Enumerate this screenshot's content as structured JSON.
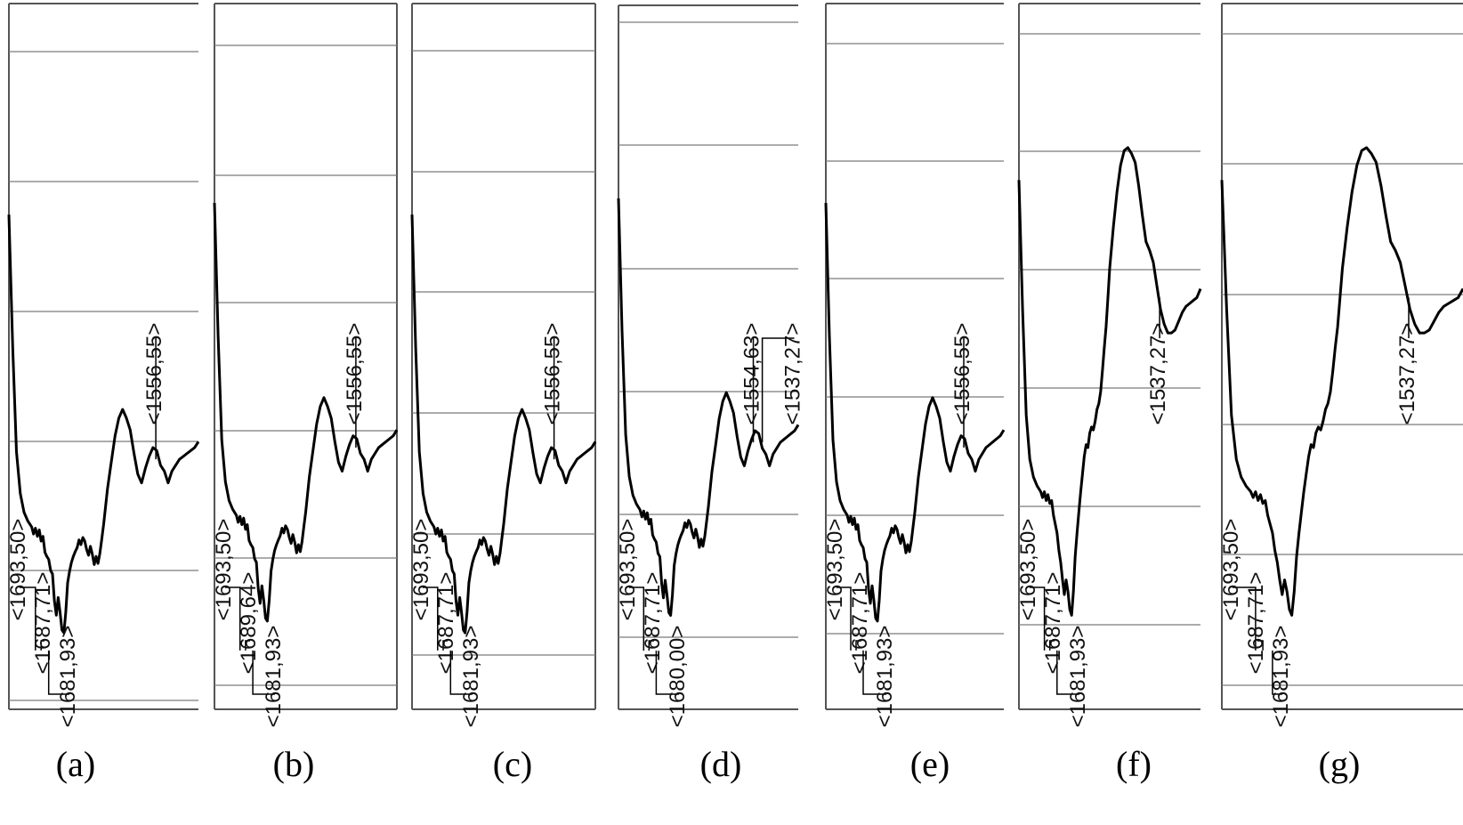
{
  "chart_data": [
    {
      "panel": "(a)",
      "type": "line",
      "series": [
        {
          "x": [
            0,
            4,
            8,
            12,
            16,
            20,
            24,
            26,
            28,
            30,
            32,
            34,
            36,
            38,
            40,
            42,
            44,
            46,
            48,
            50,
            52,
            54,
            56,
            58,
            60,
            62,
            64,
            66,
            68,
            70,
            72,
            74,
            76,
            78,
            80,
            82,
            84,
            86,
            88,
            90,
            92,
            94,
            96,
            98,
            100,
            104,
            108,
            112,
            116,
            120,
            124,
            128,
            132,
            136,
            140,
            144,
            148,
            152,
            156,
            160,
            164,
            168,
            172,
            176,
            180,
            184,
            188,
            192,
            196,
            200
          ],
          "y": [
            35.9,
            58.5,
            76.2,
            83.3,
            86.5,
            88.0,
            89.0,
            90.2,
            89.2,
            90.6,
            89.5,
            91.4,
            90.6,
            93.3,
            94.0,
            94.5,
            96.4,
            97.0,
            101.5,
            104.0,
            101.0,
            103.5,
            106.5,
            107.0,
            103.5,
            98.5,
            96.5,
            95.0,
            94.0,
            93.2,
            92.5,
            91.2,
            92.0,
            90.8,
            91.4,
            92.8,
            93.8,
            92.3,
            93.6,
            95.4,
            94.0,
            95.2,
            93.5,
            91.0,
            88.5,
            82.5,
            78.0,
            73.5,
            70.5,
            69.0,
            70.5,
            72.5,
            76.5,
            80.0,
            81.5,
            79.0,
            77.0,
            75.5,
            76.0,
            78.5,
            79.5,
            81.5,
            79.5,
            78.5,
            77.5,
            77.0,
            76.5,
            76.0,
            75.5,
            74.5
          ]
        }
      ],
      "peak_labels": [
        "<1693,50>",
        "<1687,71>",
        "<1681,93>",
        "<1556,55>"
      ]
    },
    {
      "panel": "(b)",
      "type": "line",
      "series": [
        {
          "x": [
            0,
            4,
            8,
            12,
            16,
            20,
            24,
            26,
            28,
            30,
            32,
            34,
            36,
            38,
            40,
            42,
            44,
            46,
            48,
            50,
            52,
            54,
            56,
            58,
            60,
            62,
            64,
            66,
            68,
            70,
            72,
            74,
            76,
            78,
            80,
            82,
            84,
            86,
            88,
            90,
            92,
            94,
            96,
            98,
            100,
            104,
            108,
            112,
            116,
            120,
            124,
            128,
            132,
            136,
            140,
            144,
            148,
            152,
            156,
            160,
            164,
            168,
            172,
            176,
            180,
            184,
            188,
            192,
            196,
            200
          ],
          "y": [
            33.9,
            56.5,
            74.2,
            81.3,
            84.5,
            86.0,
            87.0,
            88.2,
            87.2,
            88.6,
            87.5,
            89.4,
            88.6,
            91.3,
            92.0,
            92.5,
            94.4,
            95.0,
            99.5,
            102.0,
            99.0,
            101.5,
            104.5,
            105.0,
            101.5,
            96.5,
            94.5,
            93.0,
            92.0,
            91.2,
            90.5,
            89.2,
            90.0,
            88.8,
            89.4,
            90.8,
            91.8,
            90.3,
            91.6,
            93.4,
            92.0,
            93.2,
            91.5,
            89.0,
            86.5,
            80.5,
            76.0,
            71.5,
            68.5,
            67.0,
            68.5,
            70.5,
            74.5,
            78.0,
            79.5,
            77.0,
            75.0,
            73.5,
            74.0,
            76.5,
            77.5,
            79.5,
            77.5,
            76.5,
            75.5,
            75.0,
            74.5,
            74.0,
            73.5,
            72.5
          ]
        }
      ],
      "peak_labels": [
        "<1693,50>",
        "<1689,64>",
        "<1681,93>",
        "<1556,55>"
      ]
    },
    {
      "panel": "(c)",
      "type": "line",
      "series": [
        {
          "x": [
            0,
            4,
            8,
            12,
            16,
            20,
            24,
            26,
            28,
            30,
            32,
            34,
            36,
            38,
            40,
            42,
            44,
            46,
            48,
            50,
            52,
            54,
            56,
            58,
            60,
            62,
            64,
            66,
            68,
            70,
            72,
            74,
            76,
            78,
            80,
            82,
            84,
            86,
            88,
            90,
            92,
            94,
            96,
            98,
            100,
            104,
            108,
            112,
            116,
            120,
            124,
            128,
            132,
            136,
            140,
            144,
            148,
            152,
            156,
            160,
            164,
            168,
            172,
            176,
            180,
            184,
            188,
            192,
            196,
            200
          ],
          "y": [
            35.9,
            58.5,
            76.2,
            83.3,
            86.5,
            88.0,
            89.0,
            90.2,
            89.2,
            90.6,
            89.5,
            91.4,
            90.6,
            93.3,
            94.0,
            94.5,
            96.4,
            97.0,
            101.5,
            104.0,
            101.0,
            103.5,
            106.5,
            107.0,
            103.5,
            98.5,
            96.5,
            95.0,
            94.0,
            93.2,
            92.5,
            91.2,
            92.0,
            90.8,
            91.4,
            92.8,
            93.8,
            92.3,
            93.6,
            95.4,
            94.0,
            95.2,
            93.5,
            91.0,
            88.5,
            82.5,
            78.0,
            73.5,
            70.5,
            69.0,
            70.5,
            72.5,
            76.5,
            80.0,
            81.5,
            79.0,
            77.0,
            75.5,
            76.0,
            78.5,
            79.5,
            81.5,
            79.5,
            78.5,
            77.5,
            77.0,
            76.5,
            76.0,
            75.5,
            74.5
          ]
        }
      ],
      "peak_labels": [
        "<1693,50>",
        "<1687,71>",
        "<1681,93>",
        "<1556,55>"
      ]
    },
    {
      "panel": "(d)",
      "type": "line",
      "series": [
        {
          "x": [
            0,
            4,
            8,
            12,
            16,
            20,
            24,
            26,
            28,
            30,
            32,
            34,
            36,
            38,
            40,
            42,
            44,
            46,
            48,
            50,
            52,
            54,
            56,
            58,
            60,
            62,
            64,
            66,
            68,
            70,
            72,
            74,
            76,
            78,
            80,
            82,
            84,
            86,
            88,
            90,
            92,
            94,
            96,
            98,
            100,
            104,
            108,
            112,
            116,
            120,
            124,
            128,
            132,
            136,
            140,
            144,
            148,
            152,
            156,
            160,
            164,
            168,
            172,
            176,
            180,
            184,
            188,
            192,
            196,
            200
          ],
          "y": [
            32.9,
            55.5,
            73.2,
            80.3,
            83.5,
            85.0,
            86.0,
            87.2,
            86.2,
            87.6,
            86.5,
            88.4,
            87.6,
            90.3,
            91.0,
            91.5,
            93.4,
            94.0,
            98.5,
            101.0,
            98.0,
            100.5,
            103.5,
            104.0,
            100.5,
            95.5,
            93.5,
            92.0,
            91.0,
            90.2,
            89.5,
            88.2,
            89.0,
            87.8,
            88.4,
            89.8,
            90.8,
            89.3,
            90.6,
            92.4,
            91.0,
            92.2,
            90.5,
            88.0,
            85.5,
            79.5,
            75.0,
            70.5,
            67.5,
            66.0,
            67.5,
            69.5,
            73.5,
            77.0,
            78.5,
            76.0,
            74.0,
            72.5,
            73.0,
            75.5,
            76.5,
            78.5,
            76.5,
            75.5,
            74.5,
            74.0,
            73.5,
            73.0,
            72.5,
            71.5
          ]
        }
      ],
      "peak_labels": [
        "<1693,50>",
        "<1687,71>",
        "<1680,00>",
        "<1554,63>",
        "<1537,27>"
      ]
    },
    {
      "panel": "(e)",
      "type": "line",
      "series": [
        {
          "x": [
            0,
            4,
            8,
            12,
            16,
            20,
            24,
            26,
            28,
            30,
            32,
            34,
            36,
            38,
            40,
            42,
            44,
            46,
            48,
            50,
            52,
            54,
            56,
            58,
            60,
            62,
            64,
            66,
            68,
            70,
            72,
            74,
            76,
            78,
            80,
            82,
            84,
            86,
            88,
            90,
            92,
            94,
            96,
            98,
            100,
            104,
            108,
            112,
            116,
            120,
            124,
            128,
            132,
            136,
            140,
            144,
            148,
            152,
            156,
            160,
            164,
            168,
            172,
            176,
            180,
            184,
            188,
            192,
            196,
            200
          ],
          "y": [
            33.9,
            56.5,
            74.2,
            81.3,
            84.5,
            86.0,
            87.0,
            88.2,
            87.2,
            88.6,
            87.5,
            89.4,
            88.6,
            91.3,
            92.0,
            92.5,
            94.4,
            95.0,
            99.5,
            102.0,
            99.0,
            101.5,
            104.5,
            105.0,
            101.5,
            96.5,
            94.5,
            93.0,
            92.0,
            91.2,
            90.5,
            89.2,
            90.0,
            88.8,
            89.4,
            90.8,
            91.8,
            90.3,
            91.6,
            93.4,
            92.0,
            93.2,
            91.5,
            89.0,
            86.5,
            80.5,
            76.0,
            71.5,
            68.5,
            67.0,
            68.5,
            70.5,
            74.5,
            78.0,
            79.5,
            77.0,
            75.0,
            73.5,
            74.0,
            76.5,
            77.5,
            79.5,
            77.5,
            76.5,
            75.5,
            75.0,
            74.5,
            74.0,
            73.5,
            72.5
          ]
        }
      ],
      "peak_labels": [
        "<1693,50>",
        "<1687,71>",
        "<1681,93>",
        "<1556,55>"
      ]
    },
    {
      "panel": "(f)",
      "type": "line",
      "series": [
        {
          "x": [
            0,
            4,
            8,
            12,
            16,
            20,
            24,
            26,
            28,
            30,
            32,
            34,
            36,
            38,
            40,
            42,
            44,
            46,
            48,
            50,
            52,
            54,
            56,
            58,
            60,
            62,
            64,
            66,
            68,
            70,
            72,
            74,
            76,
            78,
            80,
            82,
            84,
            86,
            88,
            90,
            92,
            94,
            96,
            98,
            100,
            104,
            108,
            112,
            116,
            120,
            124,
            128,
            132,
            136,
            140,
            144,
            148,
            152,
            156,
            160,
            164,
            168,
            172,
            176,
            180,
            184,
            188,
            192,
            196,
            200
          ],
          "y": [
            30.0,
            52.0,
            70.0,
            77.5,
            80.5,
            82.0,
            83.0,
            84.0,
            83.0,
            84.5,
            83.5,
            85.0,
            84.5,
            87.0,
            88.5,
            90.0,
            93.0,
            95.0,
            98.0,
            100.5,
            98.0,
            100.0,
            103.0,
            104.0,
            100.0,
            94.0,
            90.0,
            86.5,
            83.0,
            80.0,
            77.0,
            75.0,
            75.5,
            73.0,
            72.0,
            72.5,
            71.0,
            69.0,
            68.0,
            66.0,
            62.5,
            58.5,
            55.0,
            50.0,
            45.0,
            38.0,
            32.0,
            27.5,
            25.0,
            24.5,
            25.5,
            27.0,
            31.0,
            36.0,
            40.5,
            42.0,
            44.0,
            48.0,
            52.0,
            54.5,
            56.0,
            56.0,
            55.5,
            54.0,
            52.5,
            51.5,
            51.0,
            50.5,
            50.0,
            48.5
          ]
        }
      ],
      "peak_labels": [
        "<1693,50>",
        "<1687,71>",
        "<1681,93>",
        "<1537,27>"
      ]
    },
    {
      "panel": "(g)",
      "type": "line",
      "series": [
        {
          "x": [
            0,
            4,
            8,
            12,
            16,
            20,
            24,
            26,
            28,
            30,
            32,
            34,
            36,
            38,
            40,
            42,
            44,
            46,
            48,
            50,
            52,
            54,
            56,
            58,
            60,
            62,
            64,
            66,
            68,
            70,
            72,
            74,
            76,
            78,
            80,
            82,
            84,
            86,
            88,
            90,
            92,
            94,
            96,
            98,
            100,
            104,
            108,
            112,
            116,
            120,
            124,
            128,
            132,
            136,
            140,
            144,
            148,
            152,
            156,
            160,
            164,
            168,
            172,
            176,
            180,
            184,
            188,
            192,
            196,
            200
          ],
          "y": [
            30.0,
            52.0,
            70.0,
            77.5,
            80.5,
            82.0,
            83.0,
            84.0,
            83.0,
            84.5,
            83.5,
            85.0,
            84.5,
            87.0,
            88.5,
            90.0,
            93.0,
            95.0,
            98.0,
            100.5,
            98.0,
            100.0,
            103.0,
            104.0,
            100.0,
            94.0,
            90.0,
            86.5,
            83.0,
            80.0,
            77.0,
            75.0,
            75.5,
            73.0,
            72.0,
            72.5,
            71.0,
            69.0,
            68.0,
            66.0,
            62.5,
            58.5,
            55.0,
            50.0,
            45.0,
            38.0,
            32.0,
            27.5,
            25.0,
            24.5,
            25.5,
            27.0,
            31.0,
            36.0,
            40.5,
            42.0,
            44.0,
            48.0,
            52.0,
            54.5,
            56.0,
            56.0,
            55.5,
            54.0,
            52.5,
            51.5,
            51.0,
            50.5,
            50.0,
            48.5
          ]
        }
      ],
      "peak_labels": [
        "<1693,50>",
        "<1687,71>",
        "<1681,93>",
        "<1537,27>"
      ]
    }
  ]
}
